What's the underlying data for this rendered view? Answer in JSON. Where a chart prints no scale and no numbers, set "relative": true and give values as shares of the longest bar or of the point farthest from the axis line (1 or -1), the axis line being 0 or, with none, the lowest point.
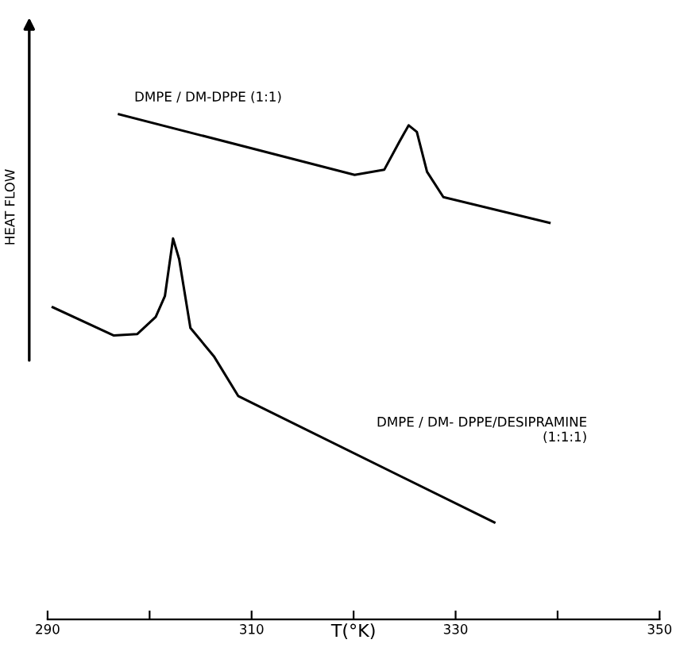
{
  "chart_data": {
    "type": "line",
    "relative": true,
    "xlabel": "T(°K)",
    "ylabel": "HEAT FLOW",
    "xlim": [
      290,
      350
    ],
    "xticks": [
      290,
      {
        "value": 300,
        "label": null
      },
      310,
      {
        "value": 320,
        "label": null
      },
      330,
      {
        "value": 340,
        "label": null
      },
      350
    ],
    "grid": false,
    "legend": false,
    "marker": "none",
    "line_style": "solid",
    "color": "#000000",
    "series": [
      {
        "name": "DMPE / DM-DPPE (1:1)",
        "x": [
          297.0,
          320.1,
          323.0,
          324.5,
          325.4,
          326.2,
          327.2,
          328.8,
          339.2
        ],
        "values": [
          1,
          0.88,
          0.89,
          0.946,
          0.978,
          0.965,
          0.886,
          0.836,
          0.785
        ]
      },
      {
        "name": "DMPE / DM- DPPE/DESIPRAMINE\n(1:1:1)",
        "x": [
          290.5,
          296.5,
          298.8,
          300.6,
          301.5,
          302.3,
          302.9,
          304.0,
          306.3,
          308.7,
          333.8
        ],
        "values": [
          0.618,
          0.562,
          0.565,
          0.599,
          0.64,
          0.754,
          0.713,
          0.577,
          0.521,
          0.442,
          0.192
        ]
      }
    ]
  }
}
